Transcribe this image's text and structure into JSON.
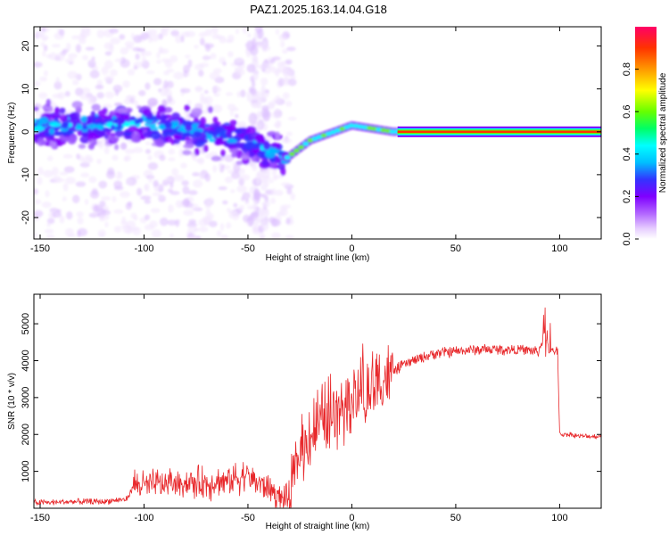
{
  "figure": {
    "title": "PAZ1.2025.163.14.04.G18"
  },
  "chart_data": [
    {
      "type": "heatmap",
      "title": "PAZ1.2025.163.14.04.G18",
      "xlabel": "Height of straight line (km)",
      "ylabel": "Frequency (Hz)",
      "xlim": [
        -153,
        120
      ],
      "ylim": [
        -25,
        24.5
      ],
      "xticks": [
        -150,
        -100,
        -50,
        0,
        50,
        100
      ],
      "yticks": [
        -20,
        -10,
        0,
        10,
        20
      ],
      "colorbar": {
        "label": "Normalized spectral amplitude",
        "range": [
          0,
          1
        ],
        "ticks": [
          0.0,
          0.2,
          0.4,
          0.6,
          0.8
        ],
        "colormap": [
          "#ffffff",
          "#e6ccff",
          "#b266ff",
          "#7f00ff",
          "#3333ff",
          "#00bfff",
          "#00ffff",
          "#00ff66",
          "#66ff00",
          "#ffff00",
          "#ff9900",
          "#ff3300",
          "#ff0066"
        ]
      },
      "ridge": [
        {
          "x": -150,
          "y": 1
        },
        {
          "x": -100,
          "y": 2
        },
        {
          "x": -60,
          "y": -1
        },
        {
          "x": -42,
          "y": -4
        },
        {
          "x": -31,
          "y": -6
        },
        {
          "x": -20,
          "y": -2
        },
        {
          "x": 0,
          "y": 1.5
        },
        {
          "x": 20,
          "y": 0
        },
        {
          "x": 120,
          "y": 0
        }
      ],
      "grid": false
    },
    {
      "type": "line",
      "xlabel": "Height of straight line (km)",
      "ylabel": "SNR (10 * v/v)",
      "xlim": [
        -153,
        120
      ],
      "ylim": [
        0,
        5800
      ],
      "xticks": [
        -150,
        -100,
        -50,
        0,
        50,
        100
      ],
      "yticks": [
        1000,
        2000,
        3000,
        4000,
        5000
      ],
      "series": [
        {
          "color": "#e8282b",
          "x": [
            -153,
            -140,
            -120,
            -108,
            -105,
            -100,
            -90,
            -80,
            -70,
            -60,
            -50,
            -45,
            -40,
            -35,
            -30,
            -25,
            -20,
            -15,
            -10,
            -5,
            0,
            5,
            10,
            15,
            20,
            25,
            30,
            40,
            50,
            60,
            70,
            80,
            90,
            93,
            95,
            97,
            99,
            100,
            105,
            110,
            120
          ],
          "y": [
            150,
            170,
            180,
            250,
            650,
            620,
            650,
            700,
            680,
            750,
            900,
            700,
            550,
            300,
            250,
            1500,
            2000,
            2300,
            2500,
            2700,
            2900,
            3000,
            3200,
            3500,
            3700,
            3900,
            4000,
            4200,
            4250,
            4300,
            4300,
            4300,
            4250,
            4800,
            4200,
            4250,
            4300,
            2000,
            2000,
            1950,
            1950
          ]
        }
      ],
      "grid": false
    }
  ]
}
